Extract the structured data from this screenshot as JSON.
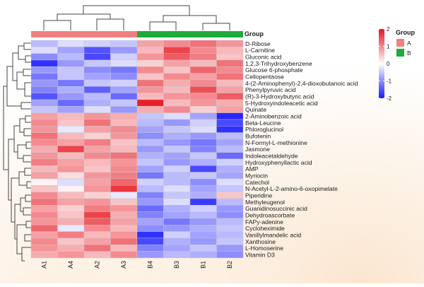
{
  "chart_data": {
    "type": "heatmap",
    "title": "",
    "columns": [
      "A1",
      "A4",
      "A2",
      "A3",
      "B4",
      "B3",
      "B1",
      "B2"
    ],
    "groups": [
      "A",
      "A",
      "A",
      "A",
      "B",
      "B",
      "B",
      "B"
    ],
    "group_label": "Group",
    "group_legend": [
      {
        "name": "A",
        "color": "#f08080"
      },
      {
        "name": "B",
        "color": "#1faa3c"
      }
    ],
    "color_scale": {
      "min": -2,
      "max": 2,
      "low": "#1a1aff",
      "mid": "#ffffff",
      "high": "#e8141e",
      "ticks": [
        2,
        1,
        0,
        -1,
        -2
      ]
    },
    "rows": [
      {
        "name": "D-Ribose",
        "values": [
          -0.6,
          -0.3,
          -0.4,
          -0.5,
          0.8,
          1.0,
          1.2,
          0.9
        ]
      },
      {
        "name": "L-Carnitine",
        "values": [
          -0.3,
          -0.8,
          -1.5,
          -0.9,
          0.6,
          1.6,
          1.0,
          0.6
        ]
      },
      {
        "name": "Gluconic acid",
        "values": [
          -1.0,
          -0.6,
          -1.6,
          -0.4,
          0.9,
          1.4,
          1.1,
          0.5
        ]
      },
      {
        "name": "1,2,3-Trihydroxybenzene",
        "values": [
          -1.8,
          -0.9,
          -0.5,
          -0.3,
          0.4,
          0.8,
          0.6,
          1.2
        ]
      },
      {
        "name": "Glucose 6-phosphate",
        "values": [
          -0.9,
          -0.5,
          -1.0,
          -1.2,
          1.0,
          0.5,
          1.3,
          1.0
        ]
      },
      {
        "name": "Cellopentaose",
        "values": [
          -1.2,
          -0.5,
          -0.8,
          -1.0,
          0.5,
          1.0,
          0.8,
          1.2
        ]
      },
      {
        "name": "4-(2-Aminophenyl)-2,4-dioxobutanoic acid",
        "values": [
          -0.9,
          -1.2,
          -0.5,
          -0.4,
          1.2,
          0.7,
          1.0,
          0.6
        ]
      },
      {
        "name": "Phenylpyruvic acid",
        "values": [
          -1.1,
          -0.7,
          -1.4,
          -0.8,
          0.9,
          0.6,
          1.5,
          0.8
        ]
      },
      {
        "name": "(R)-3-Hydroxybutyric acid",
        "values": [
          -1.5,
          -0.9,
          -0.6,
          -1.3,
          0.6,
          0.9,
          1.0,
          1.4
        ]
      },
      {
        "name": "5-Hydroxyindoleacetic acid",
        "values": [
          -0.8,
          -1.3,
          -0.7,
          -0.5,
          1.9,
          0.6,
          0.9,
          0.7
        ]
      },
      {
        "name": "Quinate",
        "values": [
          -0.5,
          -0.8,
          -0.3,
          -0.9,
          0.7,
          1.0,
          0.4,
          0.8
        ]
      },
      {
        "name": "2-Aminobenzoic acid",
        "values": [
          0.8,
          0.6,
          0.9,
          0.7,
          -0.5,
          -0.3,
          -0.8,
          -1.9
        ]
      },
      {
        "name": "Beta-Leucine",
        "values": [
          1.0,
          0.5,
          1.2,
          0.6,
          -0.6,
          -0.9,
          -0.4,
          -1.6
        ]
      },
      {
        "name": "Phloroglucinol",
        "values": [
          0.9,
          -0.2,
          0.8,
          1.0,
          -0.8,
          -0.5,
          -0.3,
          -1.8
        ]
      },
      {
        "name": "Bufotenin",
        "values": [
          1.2,
          0.6,
          0.4,
          0.9,
          -1.0,
          -0.7,
          -0.9,
          -0.6
        ]
      },
      {
        "name": "N-Formyl-L-methionine",
        "values": [
          1.0,
          0.8,
          1.1,
          0.5,
          -0.6,
          -0.9,
          -1.2,
          -0.8
        ]
      },
      {
        "name": "Jasmone",
        "values": [
          0.7,
          1.6,
          0.8,
          0.6,
          -0.9,
          -0.5,
          -1.1,
          -0.6
        ]
      },
      {
        "name": "Indoleacetaldehyde",
        "values": [
          0.9,
          0.6,
          1.0,
          1.2,
          -0.7,
          -0.8,
          -0.5,
          -1.3
        ]
      },
      {
        "name": "Hydroxyphenyllactic acid",
        "values": [
          1.1,
          0.8,
          0.6,
          0.9,
          -0.5,
          -0.9,
          -0.7,
          -0.4
        ]
      },
      {
        "name": "AMP",
        "values": [
          0.6,
          0.9,
          0.5,
          1.0,
          -0.8,
          -0.4,
          -1.6,
          -0.7
        ]
      },
      {
        "name": "Myriocin",
        "values": [
          0.8,
          0.3,
          0.9,
          1.1,
          -1.2,
          -0.6,
          -0.5,
          -0.8
        ]
      },
      {
        "name": "Catechol",
        "values": [
          0.1,
          -0.3,
          0.8,
          1.3,
          -0.4,
          -0.6,
          -1.0,
          -0.3
        ]
      },
      {
        "name": "N-Acetyl-L-2-amino-6-oxopimelate",
        "values": [
          0.5,
          0.1,
          0.9,
          1.7,
          -0.6,
          -0.3,
          -0.8,
          -0.5
        ]
      },
      {
        "name": "Piperidine",
        "values": [
          1.0,
          0.6,
          0.4,
          -0.2,
          -1.1,
          -0.5,
          -0.7,
          0.5
        ]
      },
      {
        "name": "Methyleugenol",
        "values": [
          1.2,
          0.8,
          0.9,
          0.5,
          -0.9,
          -0.3,
          -1.7,
          -0.6
        ]
      },
      {
        "name": "Guanidinosuccinic acid",
        "values": [
          0.8,
          0.4,
          1.1,
          0.9,
          -1.3,
          -0.7,
          -0.4,
          -0.9
        ]
      },
      {
        "name": "Dehydroascorbate",
        "values": [
          1.0,
          0.5,
          1.6,
          0.7,
          -1.1,
          -0.8,
          -0.6,
          -1.0
        ]
      },
      {
        "name": "FAPy-adenine",
        "values": [
          0.9,
          0.7,
          1.4,
          0.8,
          -0.8,
          -1.2,
          -0.9,
          -0.6
        ]
      },
      {
        "name": "Cycloheximide",
        "values": [
          1.3,
          -0.2,
          1.0,
          0.6,
          -1.0,
          -0.9,
          -0.7,
          -0.5
        ]
      },
      {
        "name": "Vanillylmandelic acid",
        "values": [
          0.8,
          1.1,
          0.6,
          0.9,
          -1.8,
          -0.4,
          -0.8,
          -0.6
        ]
      },
      {
        "name": "Xanthosine",
        "values": [
          1.0,
          0.5,
          0.8,
          1.2,
          -1.6,
          -0.7,
          -0.9,
          -0.5
        ]
      },
      {
        "name": "L-Homoserine",
        "values": [
          0.9,
          0.7,
          1.2,
          0.6,
          -1.1,
          -0.8,
          -0.5,
          -0.9
        ]
      },
      {
        "name": "Vitamin D3",
        "values": [
          0.7,
          0.9,
          0.6,
          1.0,
          -0.9,
          -0.6,
          -0.7,
          -1.0
        ]
      }
    ]
  }
}
